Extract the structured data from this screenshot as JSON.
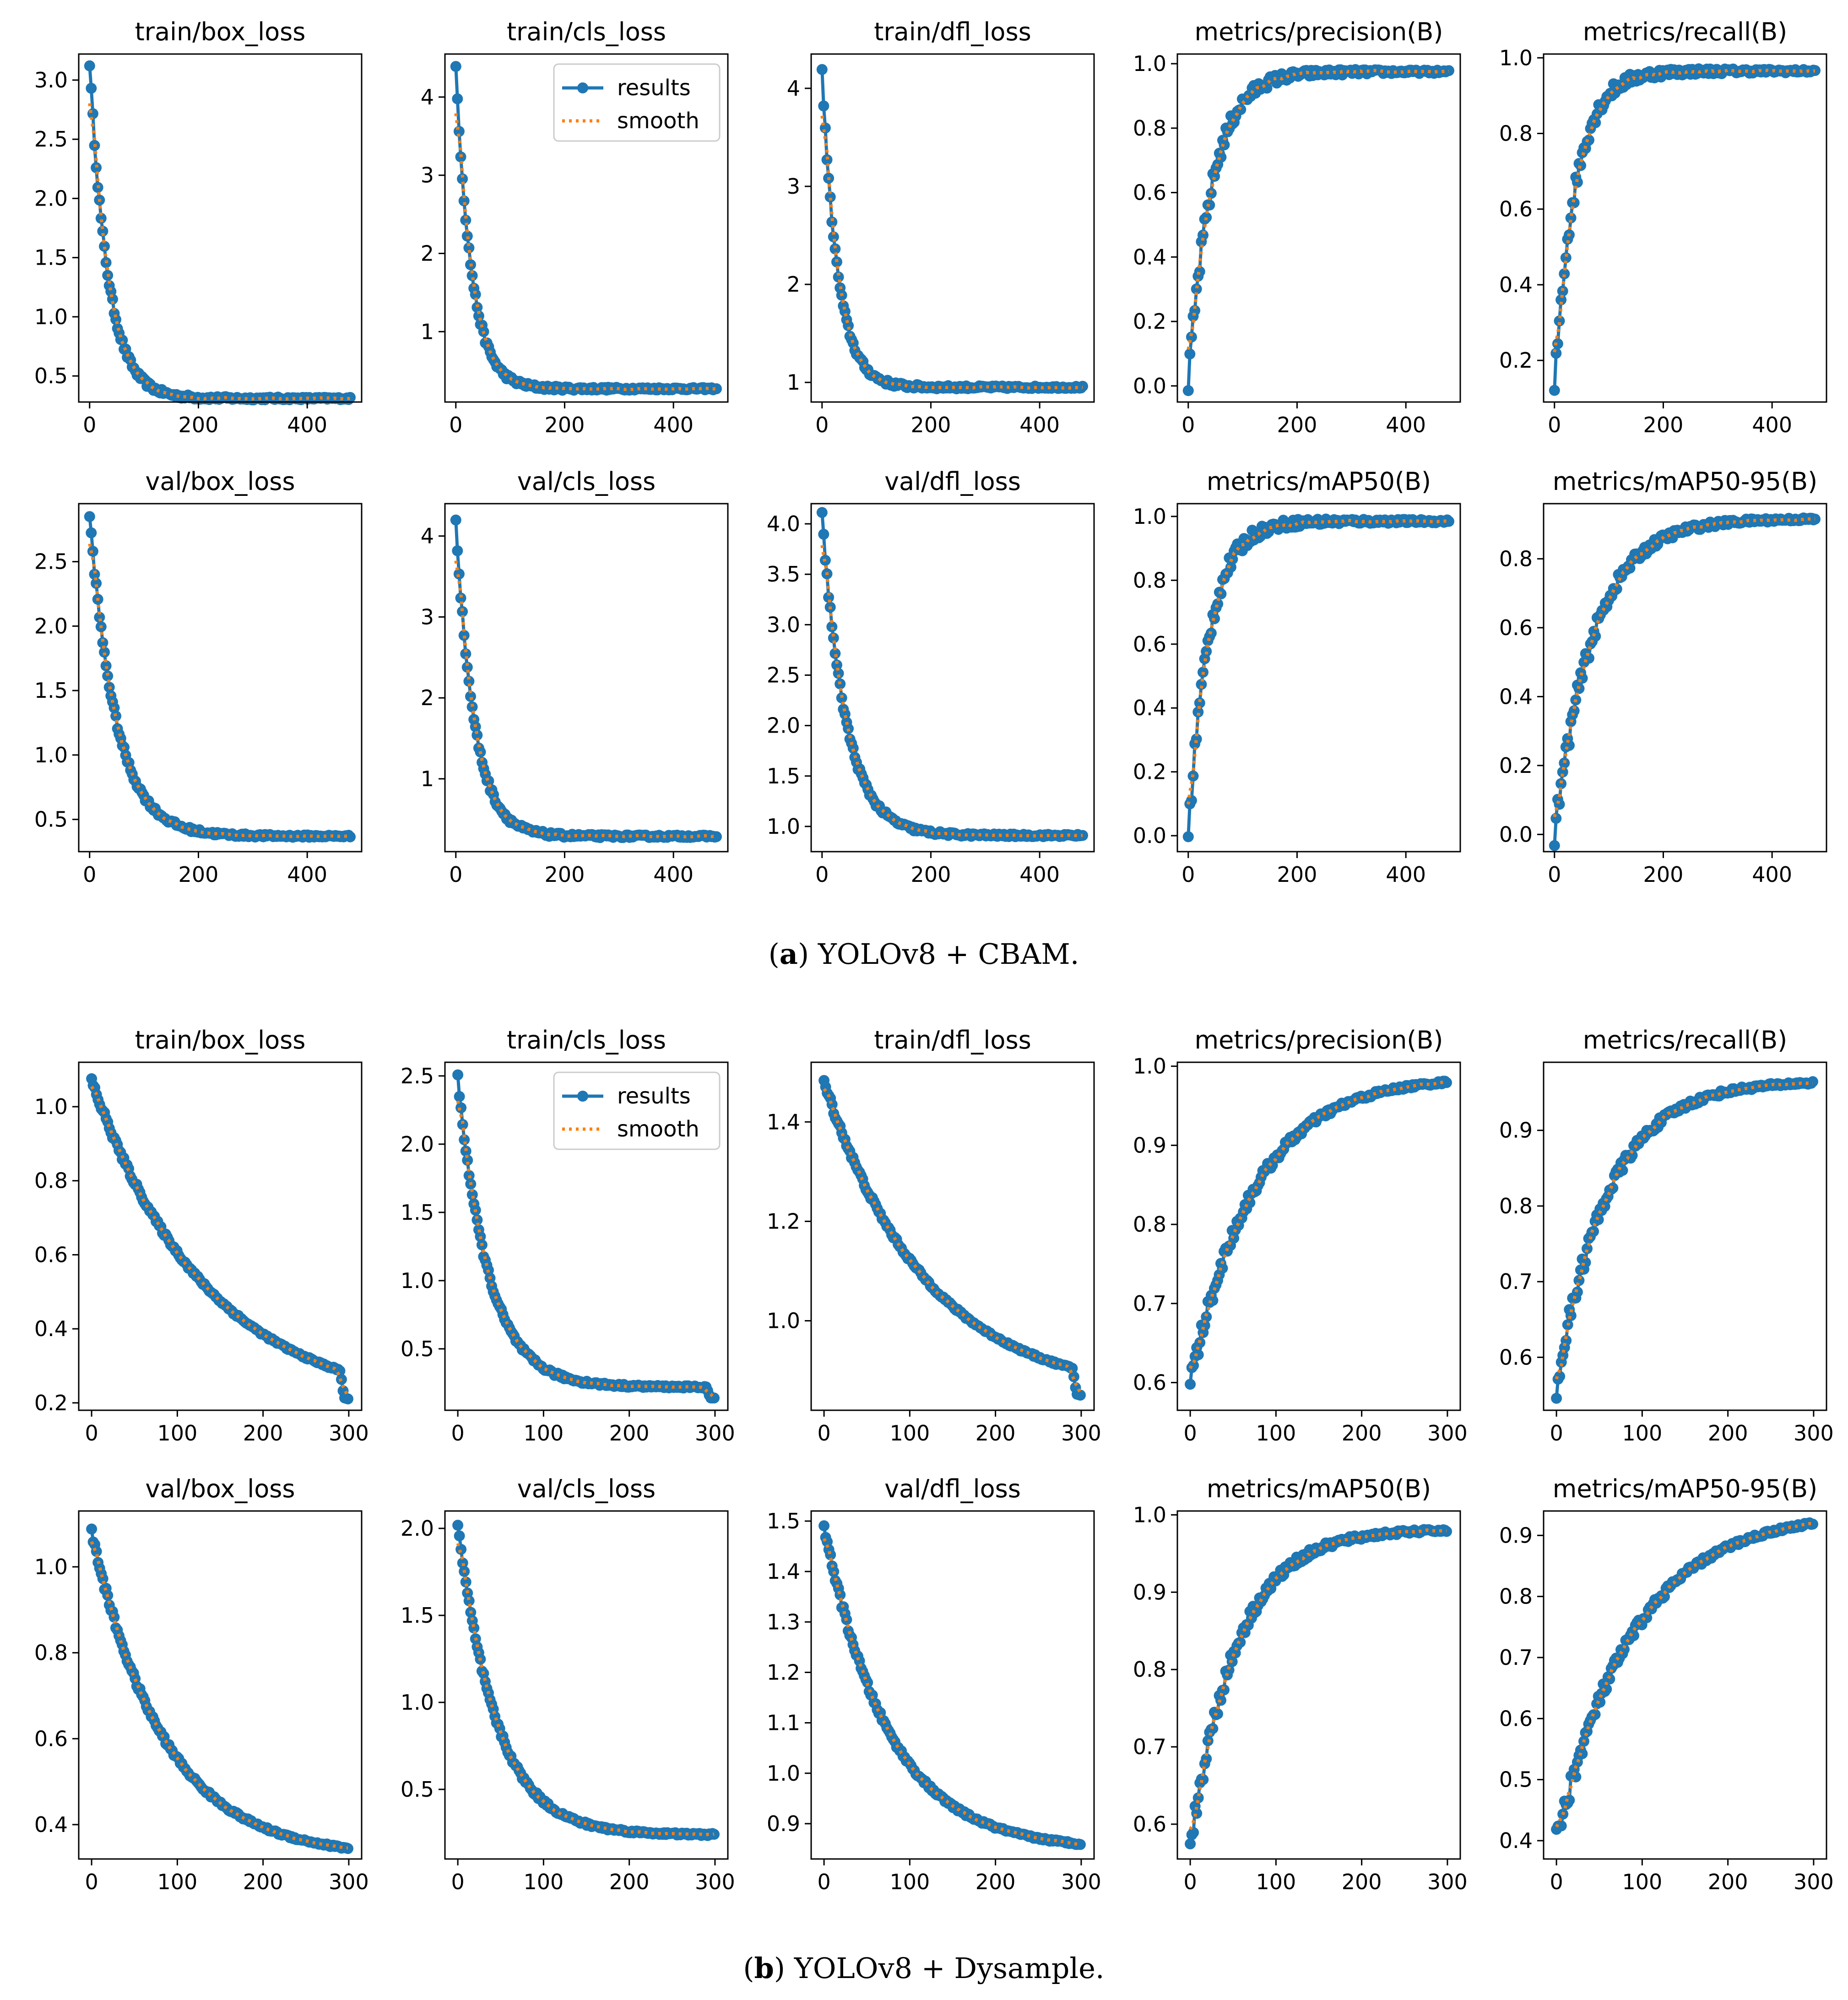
{
  "figure": {
    "captions": [
      {
        "label": "a",
        "text": "YOLOv8 + CBAM."
      },
      {
        "label": "b",
        "text": "YOLOv8 + Dysample."
      }
    ],
    "legend": {
      "results": "results",
      "smooth": "smooth"
    },
    "colors": {
      "results": "#1f77b4",
      "smooth": "#ff7f0e",
      "axis": "#000000"
    }
  },
  "chart_data": [
    {
      "group": "a",
      "type": "line",
      "title": "train/box_loss",
      "epochs": 480,
      "xlim": [
        -20,
        500
      ],
      "xticks": [
        0,
        200,
        400
      ],
      "ylim": [
        0.28,
        3.22
      ],
      "yticks": [
        0.5,
        1.0,
        1.5,
        2.0,
        2.5,
        3.0
      ],
      "curve": "decay",
      "start": 3.15,
      "end": 0.31,
      "knee": 0.07
    },
    {
      "group": "a",
      "type": "line",
      "title": "train/cls_loss",
      "epochs": 480,
      "xlim": [
        -20,
        500
      ],
      "xticks": [
        0,
        200,
        400
      ],
      "ylim": [
        0.1,
        4.55
      ],
      "yticks": [
        1,
        2,
        3,
        4
      ],
      "curve": "decay",
      "start": 4.38,
      "end": 0.27,
      "knee": 0.06,
      "legend": true
    },
    {
      "group": "a",
      "type": "line",
      "title": "train/dfl_loss",
      "epochs": 480,
      "xlim": [
        -20,
        500
      ],
      "xticks": [
        0,
        200,
        400
      ],
      "ylim": [
        0.8,
        4.35
      ],
      "yticks": [
        1,
        2,
        3,
        4
      ],
      "curve": "decay",
      "start": 4.17,
      "end": 0.95,
      "knee": 0.06
    },
    {
      "group": "a",
      "type": "line",
      "title": "metrics/precision(B)",
      "epochs": 480,
      "xlim": [
        -20,
        500
      ],
      "xticks": [
        0,
        200,
        400
      ],
      "ylim": [
        -0.05,
        1.03
      ],
      "yticks": [
        0.0,
        0.2,
        0.4,
        0.6,
        0.8,
        1.0
      ],
      "curve": "rise",
      "start": 0.0,
      "end": 0.975,
      "knee": 0.09
    },
    {
      "group": "a",
      "type": "line",
      "title": "metrics/recall(B)",
      "epochs": 480,
      "xlim": [
        -20,
        500
      ],
      "xticks": [
        0,
        200,
        400
      ],
      "ylim": [
        0.09,
        1.01
      ],
      "yticks": [
        0.2,
        0.4,
        0.6,
        0.8,
        1.0
      ],
      "curve": "rise",
      "start": 0.13,
      "end": 0.965,
      "knee": 0.08
    },
    {
      "group": "a",
      "type": "line",
      "title": "val/box_loss",
      "epochs": 480,
      "xlim": [
        -20,
        500
      ],
      "xticks": [
        0,
        200,
        400
      ],
      "ylim": [
        0.25,
        2.95
      ],
      "yticks": [
        0.5,
        1.0,
        1.5,
        2.0,
        2.5
      ],
      "curve": "decay",
      "start": 2.86,
      "end": 0.37,
      "knee": 0.1
    },
    {
      "group": "a",
      "type": "line",
      "title": "val/cls_loss",
      "epochs": 480,
      "xlim": [
        -20,
        500
      ],
      "xticks": [
        0,
        200,
        400
      ],
      "ylim": [
        0.1,
        4.4
      ],
      "yticks": [
        1,
        2,
        3,
        4
      ],
      "curve": "decay",
      "start": 4.2,
      "end": 0.29,
      "knee": 0.07
    },
    {
      "group": "a",
      "type": "line",
      "title": "val/dfl_loss",
      "epochs": 480,
      "xlim": [
        -20,
        500
      ],
      "xticks": [
        0,
        200,
        400
      ],
      "ylim": [
        0.75,
        4.2
      ],
      "yticks": [
        1.0,
        1.5,
        2.0,
        2.5,
        3.0,
        3.5,
        4.0
      ],
      "curve": "decay",
      "start": 4.08,
      "end": 0.91,
      "knee": 0.09
    },
    {
      "group": "a",
      "type": "line",
      "title": "metrics/mAP50(B)",
      "epochs": 480,
      "xlim": [
        -20,
        500
      ],
      "xticks": [
        0,
        200,
        400
      ],
      "ylim": [
        -0.05,
        1.04
      ],
      "yticks": [
        0.0,
        0.2,
        0.4,
        0.6,
        0.8,
        1.0
      ],
      "curve": "rise",
      "start": 0.0,
      "end": 0.985,
      "knee": 0.08
    },
    {
      "group": "a",
      "type": "line",
      "title": "metrics/mAP50-95(B)",
      "epochs": 480,
      "xlim": [
        -20,
        500
      ],
      "xticks": [
        0,
        200,
        400
      ],
      "ylim": [
        -0.05,
        0.96
      ],
      "yticks": [
        0.0,
        0.2,
        0.4,
        0.6,
        0.8
      ],
      "curve": "rise",
      "start": 0.0,
      "end": 0.915,
      "knee": 0.15
    },
    {
      "group": "b",
      "type": "line",
      "title": "train/box_loss",
      "epochs": 300,
      "xlim": [
        -15,
        315
      ],
      "xticks": [
        0,
        100,
        200,
        300
      ],
      "ylim": [
        0.18,
        1.12
      ],
      "yticks": [
        0.2,
        0.4,
        0.6,
        0.8,
        1.0
      ],
      "curve": "decay",
      "start": 1.07,
      "end": 0.28,
      "knee": 0.45,
      "dropAt": 290,
      "dropTo": 0.21
    },
    {
      "group": "b",
      "type": "line",
      "title": "train/cls_loss",
      "epochs": 300,
      "xlim": [
        -15,
        315
      ],
      "xticks": [
        0,
        100,
        200,
        300
      ],
      "ylim": [
        0.05,
        2.6
      ],
      "yticks": [
        0.5,
        1.0,
        1.5,
        2.0,
        2.5
      ],
      "curve": "decay",
      "start": 2.48,
      "end": 0.22,
      "knee": 0.12,
      "dropAt": 290,
      "dropTo": 0.14,
      "legend": true
    },
    {
      "group": "b",
      "type": "line",
      "title": "train/dfl_loss",
      "epochs": 300,
      "xlim": [
        -15,
        315
      ],
      "xticks": [
        0,
        100,
        200,
        300
      ],
      "ylim": [
        0.82,
        1.52
      ],
      "yticks": [
        1.0,
        1.2,
        1.4
      ],
      "curve": "decay",
      "start": 1.48,
      "end": 0.9,
      "knee": 0.4,
      "dropAt": 290,
      "dropTo": 0.85
    },
    {
      "group": "b",
      "type": "line",
      "title": "metrics/precision(B)",
      "epochs": 300,
      "xlim": [
        -15,
        315
      ],
      "xticks": [
        0,
        100,
        200,
        300
      ],
      "ylim": [
        0.565,
        1.005
      ],
      "yticks": [
        0.6,
        0.7,
        0.8,
        0.9,
        1.0
      ],
      "curve": "rise",
      "start": 0.6,
      "end": 0.98,
      "knee": 0.25
    },
    {
      "group": "b",
      "type": "line",
      "title": "metrics/recall(B)",
      "epochs": 300,
      "xlim": [
        -15,
        315
      ],
      "xticks": [
        0,
        100,
        200,
        300
      ],
      "ylim": [
        0.53,
        0.99
      ],
      "yticks": [
        0.6,
        0.7,
        0.8,
        0.9
      ],
      "curve": "rise",
      "start": 0.56,
      "end": 0.963,
      "knee": 0.2
    },
    {
      "group": "b",
      "type": "line",
      "title": "val/box_loss",
      "epochs": 300,
      "xlim": [
        -15,
        315
      ],
      "xticks": [
        0,
        100,
        200,
        300
      ],
      "ylim": [
        0.32,
        1.13
      ],
      "yticks": [
        0.4,
        0.6,
        0.8,
        1.0
      ],
      "curve": "decay",
      "start": 1.08,
      "end": 0.345,
      "knee": 0.28
    },
    {
      "group": "b",
      "type": "line",
      "title": "val/cls_loss",
      "epochs": 300,
      "xlim": [
        -15,
        315
      ],
      "xticks": [
        0,
        100,
        200,
        300
      ],
      "ylim": [
        0.1,
        2.1
      ],
      "yticks": [
        0.5,
        1.0,
        1.5,
        2.0
      ],
      "curve": "decay",
      "start": 2.02,
      "end": 0.24,
      "knee": 0.15
    },
    {
      "group": "b",
      "type": "line",
      "title": "val/dfl_loss",
      "epochs": 300,
      "xlim": [
        -15,
        315
      ],
      "xticks": [
        0,
        100,
        200,
        300
      ],
      "ylim": [
        0.83,
        1.52
      ],
      "yticks": [
        0.9,
        1.0,
        1.1,
        1.2,
        1.3,
        1.4,
        1.5
      ],
      "curve": "decay",
      "start": 1.49,
      "end": 0.86,
      "knee": 0.25
    },
    {
      "group": "b",
      "type": "line",
      "title": "metrics/mAP50(B)",
      "epochs": 300,
      "xlim": [
        -15,
        315
      ],
      "xticks": [
        0,
        100,
        200,
        300
      ],
      "ylim": [
        0.555,
        1.005
      ],
      "yticks": [
        0.6,
        0.7,
        0.8,
        0.9,
        1.0
      ],
      "curve": "rise",
      "start": 0.57,
      "end": 0.98,
      "knee": 0.18
    },
    {
      "group": "b",
      "type": "line",
      "title": "metrics/mAP50-95(B)",
      "epochs": 300,
      "xlim": [
        -15,
        315
      ],
      "xticks": [
        0,
        100,
        200,
        300
      ],
      "ylim": [
        0.37,
        0.94
      ],
      "yticks": [
        0.4,
        0.5,
        0.6,
        0.7,
        0.8,
        0.9
      ],
      "curve": "rise",
      "start": 0.4,
      "end": 0.92,
      "knee": 0.3
    }
  ]
}
